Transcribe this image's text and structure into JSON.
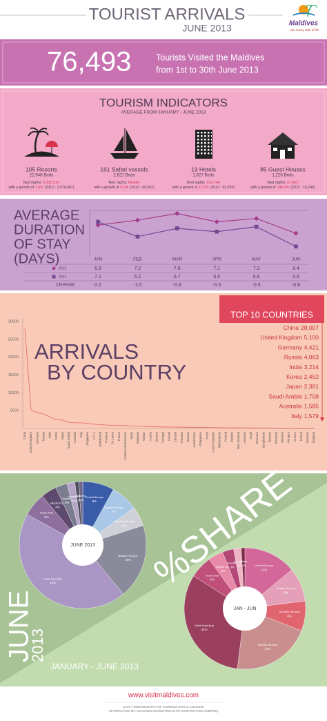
{
  "header": {
    "title": "TOURIST ARRIVALS",
    "subtitle": "JUNE 2013",
    "logo": "Maldives",
    "tagline": "...the sunny side of life"
  },
  "hero": {
    "number": "76,493",
    "line1": "Tourists Visited the Maldives",
    "line2": "from 1st to 30th June 2013"
  },
  "indicators": {
    "title": "TOURISM INDICATORS",
    "subtitle": "AVERAGE FROM JANUARY - JUNE 2013",
    "items": [
      {
        "name": "105 Resorts",
        "beds": "22,948 Beds",
        "bed_nights_label": "Bed nights",
        "bed_nights": "3,302,916",
        "growth_label": "with a growth of",
        "growth": "7.4%",
        "prior": "(2012 - 3,076,487)"
      },
      {
        "name": "161 Safari vessels",
        "beds": "2,621 Beds",
        "bed_nights_label": "Bed nights",
        "bed_nights": "64,840",
        "growth_label": "with a growth of",
        "growth": "8.0%",
        "prior": "(2012 - 60,062)"
      },
      {
        "name": "19 Hotels",
        "beds": "1,627 Beds",
        "bed_nights_label": "Bed nights",
        "bed_nights": "102,749",
        "growth_label": "with a growth of",
        "growth": "11.6%",
        "prior": "(2012 - 92,059)"
      },
      {
        "name": "85 Guest Houses",
        "beds": "1,226 Beds",
        "bed_nights_label": "Bed nights",
        "bed_nights": "37,653",
        "growth_label": "with a growth of",
        "growth": "146.9%",
        "prior": "(2012 - 15,248)"
      }
    ]
  },
  "chart_data": [
    {
      "type": "line",
      "title_lines": [
        "AVERAGE",
        "DURATION",
        "OF STAY",
        "(DAYS)"
      ],
      "categories": [
        "JAN",
        "FEB",
        "MAR",
        "APR",
        "MAY",
        "JUN"
      ],
      "series": [
        {
          "name": "2012",
          "color": "#a23c8c",
          "marker": "diamond",
          "values": [
            6.9,
            7.2,
            7.6,
            7.1,
            7.3,
            6.4
          ]
        },
        {
          "name": "2013",
          "color": "#6e4a92",
          "marker": "square",
          "values": [
            7.1,
            6.2,
            6.7,
            6.5,
            6.8,
            5.6
          ]
        }
      ],
      "ylim": [
        5.4,
        8.0
      ],
      "change_title": "CHANGE",
      "change_labels": [
        "0.2",
        "-1.0",
        "-0.9",
        "-0.5",
        "-0.5",
        "-0.8"
      ]
    },
    {
      "type": "line",
      "title_lines": [
        "ARRIVALS",
        "BY COUNTRY"
      ],
      "categories": [
        "China",
        "United Kingdom",
        "Germany",
        "Russia",
        "India",
        "Korea",
        "Japan",
        "Saudi Arabia",
        "Australia",
        "Italy",
        "Singapore",
        "U.S.A",
        "Switzerland",
        "Thailand",
        "Sri Lanka",
        "France",
        "United Arab Emirates",
        "Spain",
        "Malaysia",
        "Taiwan",
        "Austria",
        "Ukraine",
        "Portugal",
        "Kuwait",
        "Canada",
        "Pakistan",
        "Norway",
        "Kazakhstan",
        "Philippines",
        "Brazil",
        "Czech Republic",
        "Netherlands",
        "Finland",
        "Sweden",
        "New Zealand",
        "Lebanon",
        "Israel",
        "Denmark",
        "Bangladesh",
        "Bahrain",
        "Romania",
        "Slovakia",
        "Hungary",
        "Greece",
        "Poland",
        "Slovenia",
        "Bulgaria"
      ],
      "values": [
        28007,
        5100,
        4421,
        4063,
        3214,
        2452,
        2361,
        1708,
        1585,
        1579,
        1400,
        1200,
        1100,
        950,
        900,
        850,
        800,
        700,
        600,
        550,
        500,
        450,
        420,
        400,
        380,
        350,
        330,
        300,
        280,
        260,
        240,
        220,
        200,
        190,
        180,
        170,
        160,
        150,
        140,
        130,
        120,
        110,
        100,
        90,
        85,
        80,
        75
      ],
      "color": "#e0686a",
      "ylim": [
        0,
        31000
      ],
      "yticks": [
        5000,
        10000,
        15000,
        20000,
        25000,
        30000
      ]
    },
    {
      "type": "pie",
      "title": "JUNE 2013",
      "categories": [
        "Central Europe",
        "Eastern Europe",
        "Southern Europe",
        "Western Europe",
        "North East Asia",
        "South Asia",
        "Middle East",
        "Oceania",
        "Americas",
        "Africa",
        "Others"
      ],
      "values": [
        8,
        7,
        5,
        19,
        44,
        6,
        4,
        3,
        2,
        1,
        1
      ],
      "value_labels": [
        "8%",
        "7%",
        "5%",
        "19%",
        "44%",
        "6%",
        "4%",
        "3%",
        "2%",
        "1%",
        "1%"
      ],
      "colors": [
        "#3a5ba8",
        "#a9c8e8",
        "#cfd0d8",
        "#8a8a9a",
        "#a996c4",
        "#8e6f9e",
        "#5e4a6e",
        "#7b7d8e",
        "#b7a5c8",
        "#4f4f5f",
        "#6c6788"
      ]
    },
    {
      "type": "pie",
      "title": "JAN - JUN",
      "categories": [
        "Central Europe",
        "Eastern Europe",
        "Southern Europe",
        "Western Europe",
        "North East Asia",
        "South Asia",
        "Middle East",
        "Oceania",
        "Americas",
        "Africa"
      ],
      "values": [
        14,
        9,
        8,
        21,
        32,
        6,
        4,
        3,
        2,
        1
      ],
      "value_labels": [
        "14%",
        "9%",
        "8%",
        "21%",
        "32%",
        "6%",
        "4%",
        "3%",
        "2%",
        "1%"
      ],
      "colors": [
        "#d3679a",
        "#e4a0b8",
        "#e0656e",
        "#c98f8f",
        "#9a3f5e",
        "#c0507a",
        "#e889a8",
        "#b34876",
        "#f0b5c5",
        "#7e2c4c"
      ]
    }
  ],
  "top10": {
    "title": "TOP 10 COUNTRIES",
    "rows": [
      [
        "China",
        "28,007"
      ],
      [
        "United Kingdom",
        "5,100"
      ],
      [
        "Germany",
        "4,421"
      ],
      [
        "Russia",
        "4,063"
      ],
      [
        "India",
        "3,214"
      ],
      [
        "Korea",
        "2,452"
      ],
      [
        "Japan",
        "2,361"
      ],
      [
        "Saudi Arabia",
        "1,708"
      ],
      [
        "Australia",
        "1,585"
      ],
      [
        "Italy",
        "1,579"
      ]
    ]
  },
  "share": {
    "title": "%SHARE",
    "vertical_lines": [
      "JUNE",
      "2013"
    ],
    "caption": "JANUARY - JUNE 2013"
  },
  "footer": {
    "url": "www.visitmaldives.com",
    "line1": "DATA FROM MINISTRY OF TOURISM ARTS & CULTURE",
    "line2": "INFOGRAPHIC BY: MALDIVES MARKETING & PR CORPORATION (MMPRC)"
  }
}
